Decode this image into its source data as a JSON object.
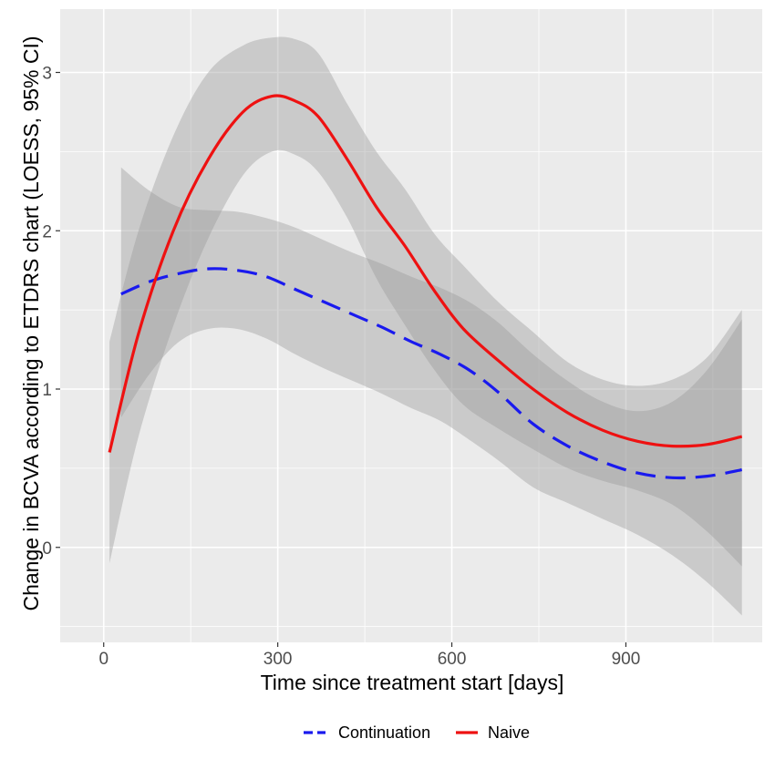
{
  "chart_data": {
    "type": "line",
    "xlabel": "Time since treatment start [days]",
    "ylabel": "Change in BCVA according to ETDRS chart (LOESS, 95% CI)",
    "xlim": [
      -75,
      1135
    ],
    "ylim": [
      -0.6,
      3.4
    ],
    "x_ticks": [
      0,
      300,
      600,
      900
    ],
    "x_minor_ticks": [
      150,
      450,
      750,
      1050
    ],
    "y_ticks": [
      0,
      1,
      2,
      3
    ],
    "y_minor_ticks": [
      -0.5,
      0.5,
      1.5,
      2.5
    ],
    "tick_labels": {
      "x": [
        "0",
        "300",
        "600",
        "900"
      ],
      "y": [
        "0",
        "1",
        "2",
        "3"
      ]
    },
    "grid": true,
    "legend_position": "bottom",
    "colors": {
      "panel": "#ebebeb",
      "grid": "#ffffff",
      "ribbon": "#999999",
      "Continuation": "#1a1aee",
      "Naive": "#ee1111"
    },
    "series": [
      {
        "name": "Naive",
        "line_style": "solid",
        "x": [
          10,
          60,
          120,
          180,
          240,
          290,
          330,
          370,
          420,
          470,
          520,
          570,
          620,
          680,
          740,
          800,
          860,
          920,
          980,
          1040,
          1100
        ],
        "y": [
          0.6,
          1.35,
          2.0,
          2.45,
          2.75,
          2.85,
          2.82,
          2.72,
          2.45,
          2.15,
          1.9,
          1.62,
          1.38,
          1.18,
          1.0,
          0.85,
          0.74,
          0.67,
          0.64,
          0.65,
          0.7
        ],
        "lower": [
          -0.1,
          0.7,
          1.4,
          1.95,
          2.35,
          2.5,
          2.48,
          2.37,
          2.08,
          1.7,
          1.4,
          1.12,
          0.9,
          0.75,
          0.62,
          0.5,
          0.42,
          0.36,
          0.27,
          0.1,
          -0.12
        ],
        "upper": [
          1.3,
          2.0,
          2.6,
          3.0,
          3.17,
          3.22,
          3.21,
          3.12,
          2.8,
          2.5,
          2.26,
          1.98,
          1.78,
          1.55,
          1.36,
          1.17,
          1.06,
          1.02,
          1.06,
          1.2,
          1.5
        ]
      },
      {
        "name": "Continuation",
        "line_style": "dashed",
        "x": [
          30,
          80,
          130,
          180,
          230,
          280,
          330,
          380,
          430,
          480,
          530,
          580,
          630,
          680,
          740,
          800,
          860,
          920,
          980,
          1040,
          1100
        ],
        "y": [
          1.6,
          1.68,
          1.73,
          1.76,
          1.75,
          1.71,
          1.63,
          1.55,
          1.47,
          1.39,
          1.3,
          1.22,
          1.12,
          0.98,
          0.78,
          0.64,
          0.54,
          0.47,
          0.44,
          0.45,
          0.49
        ],
        "lower": [
          0.82,
          1.1,
          1.3,
          1.38,
          1.38,
          1.32,
          1.22,
          1.13,
          1.05,
          0.97,
          0.88,
          0.8,
          0.68,
          0.55,
          0.38,
          0.28,
          0.18,
          0.08,
          -0.05,
          -0.22,
          -0.43
        ],
        "upper": [
          2.4,
          2.25,
          2.15,
          2.13,
          2.12,
          2.08,
          2.02,
          1.94,
          1.86,
          1.79,
          1.71,
          1.64,
          1.55,
          1.42,
          1.22,
          1.05,
          0.92,
          0.86,
          0.92,
          1.12,
          1.44
        ]
      }
    ]
  },
  "legend": {
    "items": [
      {
        "label": "Continuation",
        "color": "#1a1aee",
        "line_style": "dashed"
      },
      {
        "label": "Naive",
        "color": "#ee1111",
        "line_style": "solid"
      }
    ]
  }
}
